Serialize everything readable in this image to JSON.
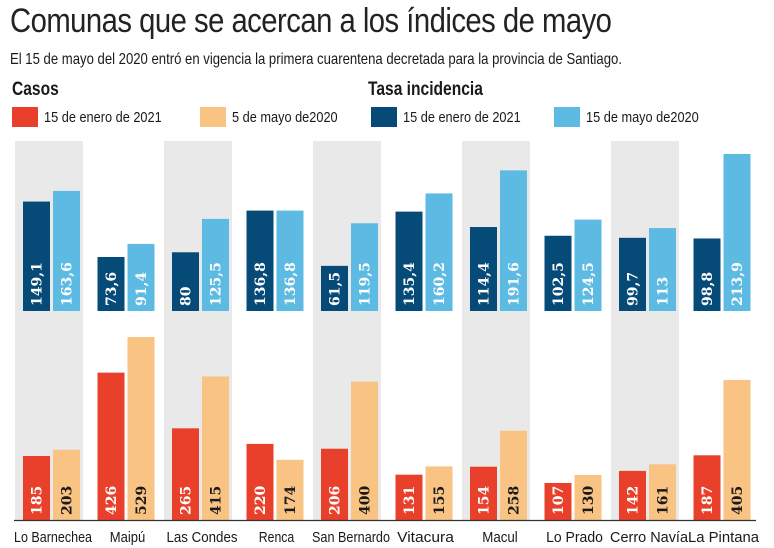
{
  "title": "Comunas que se acercan a los índices de mayo",
  "subtitle": "El 15 de mayo del 2020 entró en vigencia la primera cuarentena decretada para la provincia de Santiago.",
  "colors": {
    "casos_2021": "#e8402a",
    "casos_2020": "#f9c383",
    "tasa_2021": "#064a78",
    "tasa_2020": "#5dbbe3",
    "band": "#e9e9e9"
  },
  "legend": {
    "casos_title": "Casos",
    "tasa_title": "Tasa incidencia",
    "items": [
      {
        "label": "15 de enero de 2021",
        "color": "#e8402a"
      },
      {
        "label": "5 de mayo de2020",
        "color": "#f9c383"
      },
      {
        "label": "15 de enero de 2021",
        "color": "#064a78"
      },
      {
        "label": "15 de mayo de2020",
        "color": "#5dbbe3"
      }
    ]
  },
  "chart_data": {
    "type": "bar",
    "title": "Comunas que se acercan a los índices de mayo",
    "categories": [
      "Lo Barnechea",
      "Maipú",
      "Las Condes",
      "Renca",
      "San Bernardo",
      "Vitacura",
      "Macul",
      "Lo Prado",
      "Cerro Navía",
      "La Pintana"
    ],
    "panels": [
      {
        "name": "Tasa incidencia",
        "position": "top",
        "series": [
          {
            "name": "15 de enero de 2021",
            "values": [
              149.1,
              73.6,
              80,
              136.8,
              61.5,
              135.4,
              114.4,
              102.5,
              99.7,
              98.8
            ],
            "labels": [
              "149,1",
              "73,6",
              "80",
              "136,8",
              "61,5",
              "135,4",
              "114,4",
              "102,5",
              "99,7",
              "98,8"
            ]
          },
          {
            "name": "15 de mayo de2020",
            "values": [
              163.6,
              91.4,
              125.5,
              136.8,
              119.5,
              160.2,
              191.6,
              124.5,
              113,
              213.9
            ],
            "labels": [
              "163,6",
              "91,4",
              "125,5",
              "136,8",
              "119,5",
              "160,2",
              "191,6",
              "124,5",
              "113",
              "213,9"
            ]
          }
        ]
      },
      {
        "name": "Casos",
        "position": "bottom",
        "series": [
          {
            "name": "15 de enero de 2021",
            "values": [
              185,
              426,
              265,
              220,
              206,
              131,
              154,
              107,
              142,
              187
            ],
            "labels": [
              "185",
              "426",
              "265",
              "220",
              "206",
              "131",
              "154",
              "107",
              "142",
              "187"
            ]
          },
          {
            "name": "5 de mayo de2020",
            "values": [
              203,
              529,
              415,
              174,
              400,
              155,
              258,
              130,
              161,
              405
            ],
            "labels": [
              "203",
              "529",
              "415",
              "174",
              "400",
              "155",
              "258",
              "130",
              "161",
              "405"
            ]
          }
        ]
      }
    ],
    "xlabel": "",
    "ylabel": "",
    "grid": false,
    "legend": "top"
  }
}
